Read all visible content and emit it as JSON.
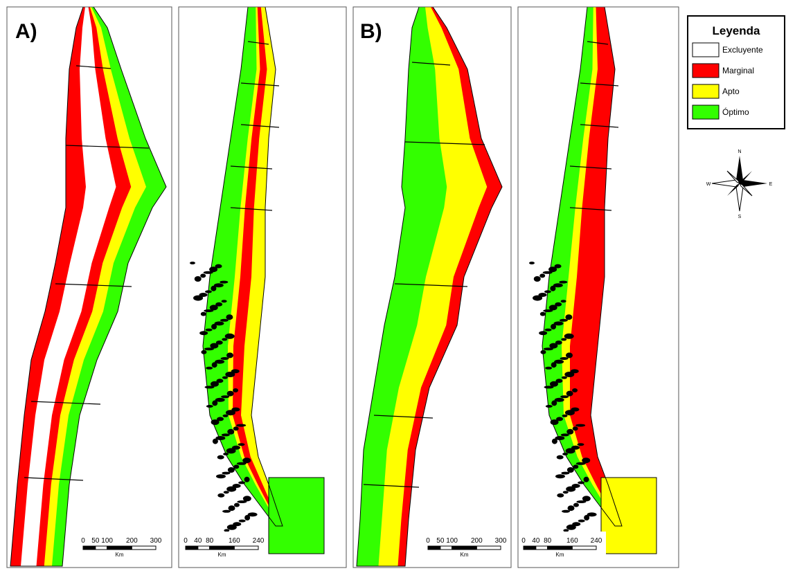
{
  "panels": [
    {
      "label": "A)",
      "scale_bar": {
        "ticks": [
          "0",
          "50",
          "100",
          "200",
          "300"
        ],
        "unit": "Km"
      }
    },
    {
      "scale_bar": {
        "ticks": [
          "0",
          "40",
          "80",
          "160",
          "240"
        ],
        "unit": "Km"
      }
    },
    {
      "label": "B)",
      "scale_bar": {
        "ticks": [
          "0",
          "50",
          "100",
          "200",
          "300"
        ],
        "unit": "Km"
      }
    },
    {
      "scale_bar": {
        "ticks": [
          "0",
          "40",
          "80",
          "160",
          "240"
        ],
        "unit": "Km"
      }
    }
  ],
  "legend": {
    "title": "Leyenda",
    "items": [
      {
        "label": "Excluyente",
        "color": "#ffffff"
      },
      {
        "label": "Marginal",
        "color": "#ff0000"
      },
      {
        "label": "Apto",
        "color": "#ffff00"
      },
      {
        "label": "Óptimo",
        "color": "#33ff00"
      }
    ]
  },
  "compass": {
    "north": "N",
    "south": "S",
    "east": "E",
    "west": "W"
  }
}
